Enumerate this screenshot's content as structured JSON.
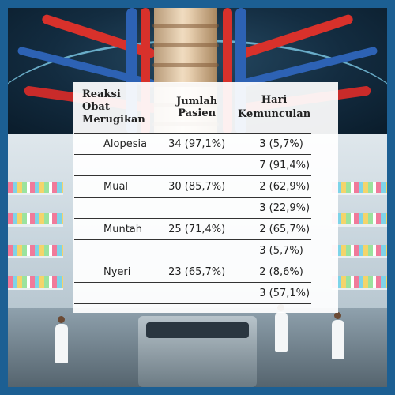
{
  "table": {
    "headers": {
      "col1": [
        "Reaksi",
        "Obat",
        "Merugikan"
      ],
      "col2": "Jumlah Pasien",
      "col3": [
        "Hari",
        "Kemunculan"
      ]
    },
    "rows": [
      {
        "reaction": "Alopesia",
        "patients": "34 (97,1%)",
        "day": "3 (5,7%)"
      },
      {
        "reaction": "",
        "patients": "",
        "day": "7 (91,4%)"
      },
      {
        "reaction": "Mual",
        "patients": "30 (85,7%)",
        "day": "2 (62,9%)"
      },
      {
        "reaction": "",
        "patients": "",
        "day": "3 (22,9%)"
      },
      {
        "reaction": "Muntah",
        "patients": "25 (71,4%)",
        "day": "2 (65,7%)"
      },
      {
        "reaction": "",
        "patients": "",
        "day": "3 (5,7%)"
      },
      {
        "reaction": "Nyeri",
        "patients": "23 (65,7%)",
        "day": "2 (8,6%)"
      },
      {
        "reaction": "",
        "patients": "",
        "day": "3 (57,1%)"
      },
      {
        "reaction": "",
        "patients": "",
        "day": ""
      }
    ]
  },
  "background": {
    "top_illustration": "anatomical-blood-vessels-spine",
    "bottom_illustration": "pharmacy-laboratory",
    "frame_color": "#1c5f93"
  }
}
